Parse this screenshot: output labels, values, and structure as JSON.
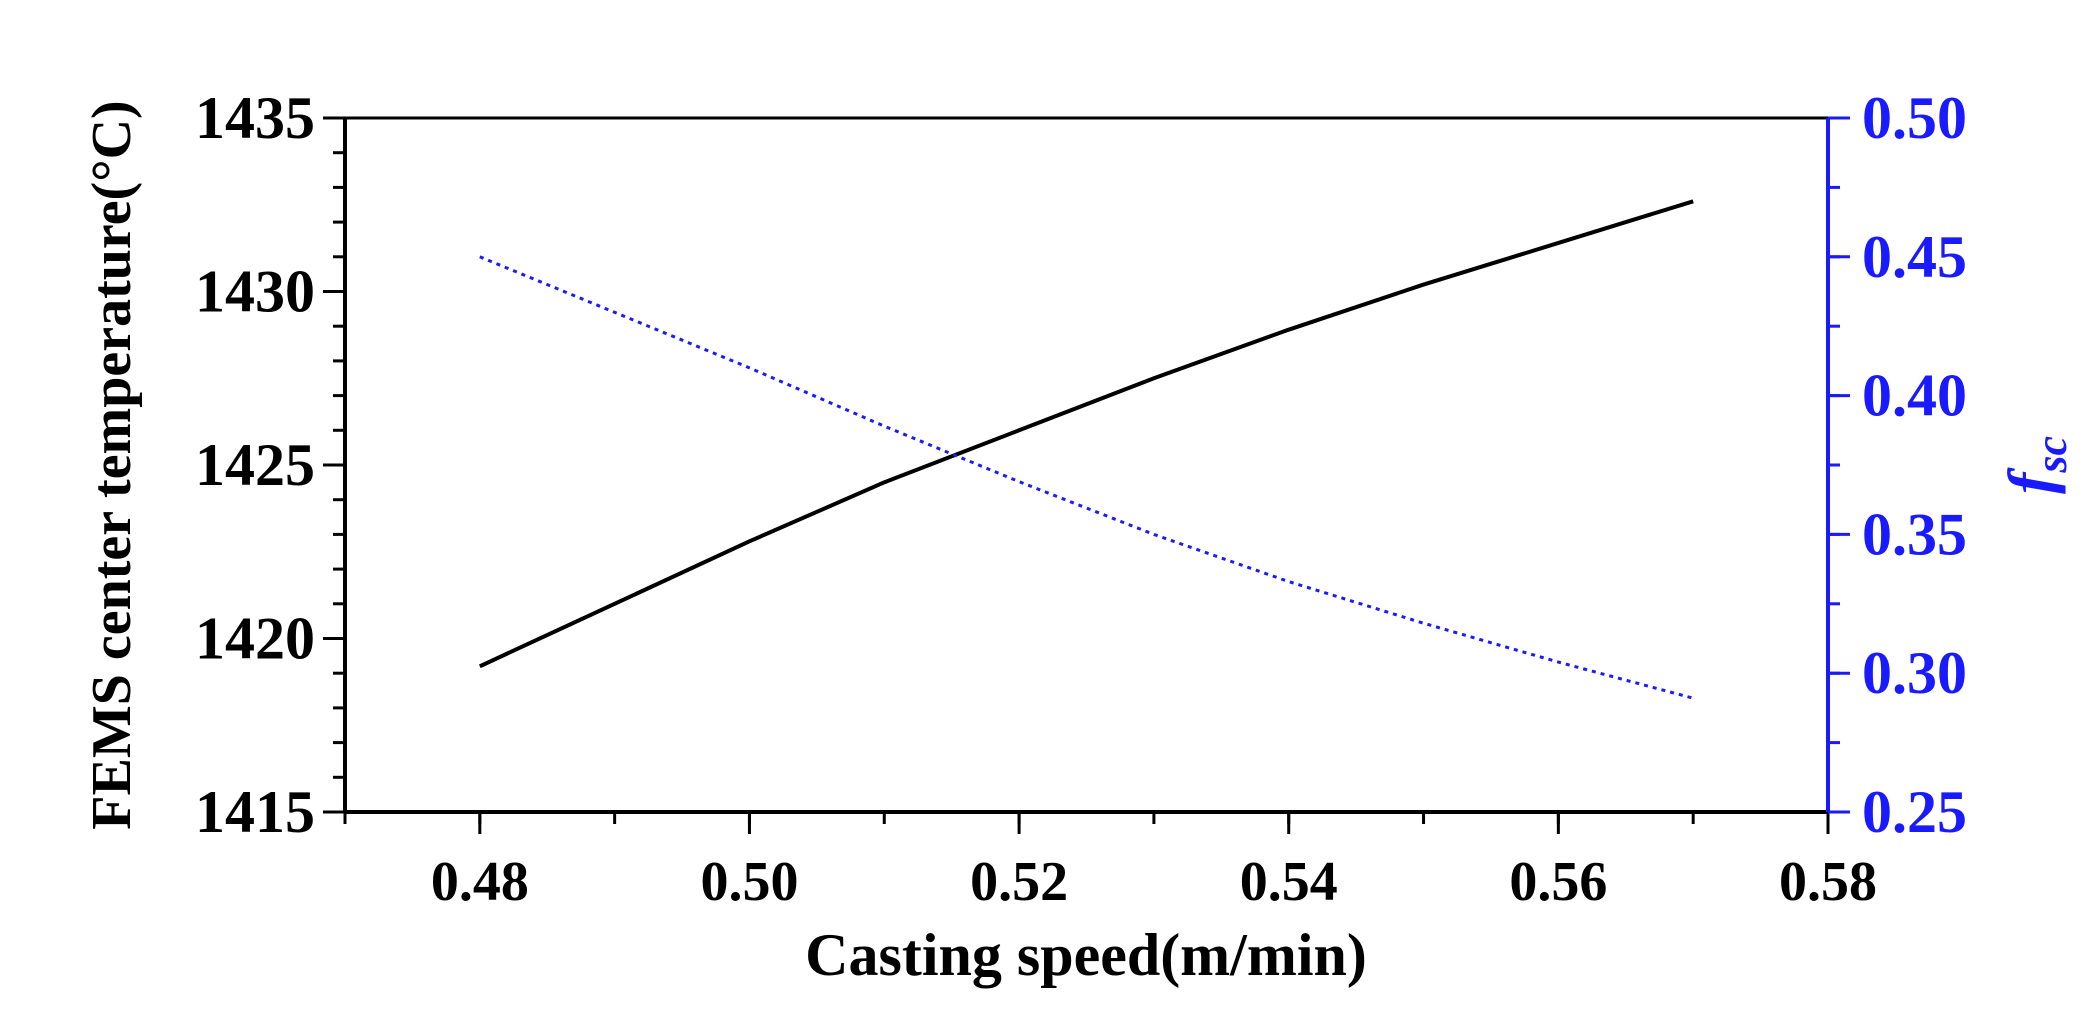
{
  "chart_data": {
    "type": "line",
    "xlabel": "Casting speed(m/min)",
    "ylabel": "FEMS center temperature(°C)",
    "y2label_main": "f",
    "y2label_sub": "sc",
    "xlim": [
      0.47,
      0.58
    ],
    "ylim": [
      1415,
      1435
    ],
    "y2lim": [
      0.25,
      0.5
    ],
    "xticks": [
      "0.48",
      "0.50",
      "0.52",
      "0.54",
      "0.56",
      "0.58"
    ],
    "yticks": [
      "1415",
      "1420",
      "1425",
      "1430",
      "1435"
    ],
    "y2ticks": [
      "0.25",
      "0.30",
      "0.35",
      "0.40",
      "0.45",
      "0.50"
    ],
    "colors": {
      "axis_left": "#000000",
      "axis_right": "#1a1aff",
      "temperature": "#000000",
      "fsc": "#1a1aff"
    },
    "series": [
      {
        "name": "FEMS center temperature",
        "axis": "left",
        "style": "solid",
        "x": [
          0.48,
          0.49,
          0.5,
          0.51,
          0.52,
          0.53,
          0.54,
          0.55,
          0.56,
          0.57
        ],
        "y": [
          1419.2,
          1421.0,
          1422.8,
          1424.5,
          1426.0,
          1427.5,
          1428.9,
          1430.2,
          1431.4,
          1432.6
        ]
      },
      {
        "name": "fsc",
        "axis": "right",
        "style": "dotted",
        "x": [
          0.48,
          0.49,
          0.5,
          0.51,
          0.52,
          0.53,
          0.54,
          0.55,
          0.56,
          0.57
        ],
        "y": [
          0.45,
          0.43,
          0.41,
          0.389,
          0.369,
          0.35,
          0.333,
          0.318,
          0.304,
          0.291
        ]
      }
    ]
  }
}
